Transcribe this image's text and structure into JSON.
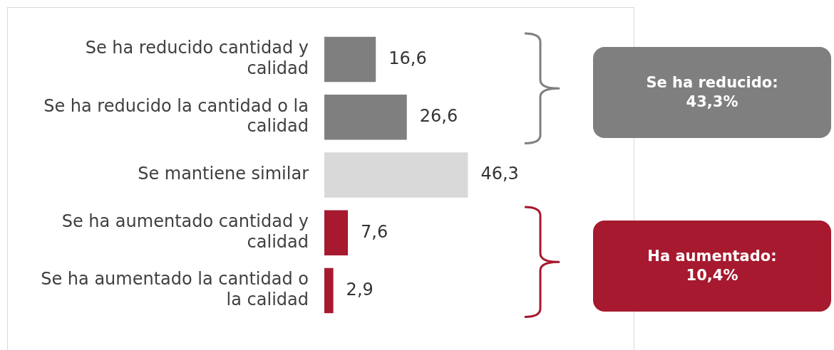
{
  "chart_data": {
    "type": "bar",
    "orientation": "horizontal",
    "categories": [
      "Se ha reducido cantidad y calidad",
      "Se ha reducido la cantidad o la calidad",
      "Se mantiene similar",
      "Se ha aumentado cantidad y calidad",
      "Se ha aumentado la cantidad o la calidad"
    ],
    "values": [
      16.6,
      26.6,
      46.3,
      7.6,
      2.9
    ],
    "colors": [
      "#7f7f7f",
      "#7f7f7f",
      "#d9d9d9",
      "#a6192e",
      "#a6192e"
    ],
    "value_labels": [
      "16,6",
      "26,6",
      "46,3",
      "7,6",
      "2,9"
    ],
    "xlim": [
      0,
      100
    ],
    "tick_labels": "y",
    "legend": false,
    "annotations": [
      "Se ha reducido: 43,3%",
      "Ha aumentado: 10,4%"
    ]
  }
}
